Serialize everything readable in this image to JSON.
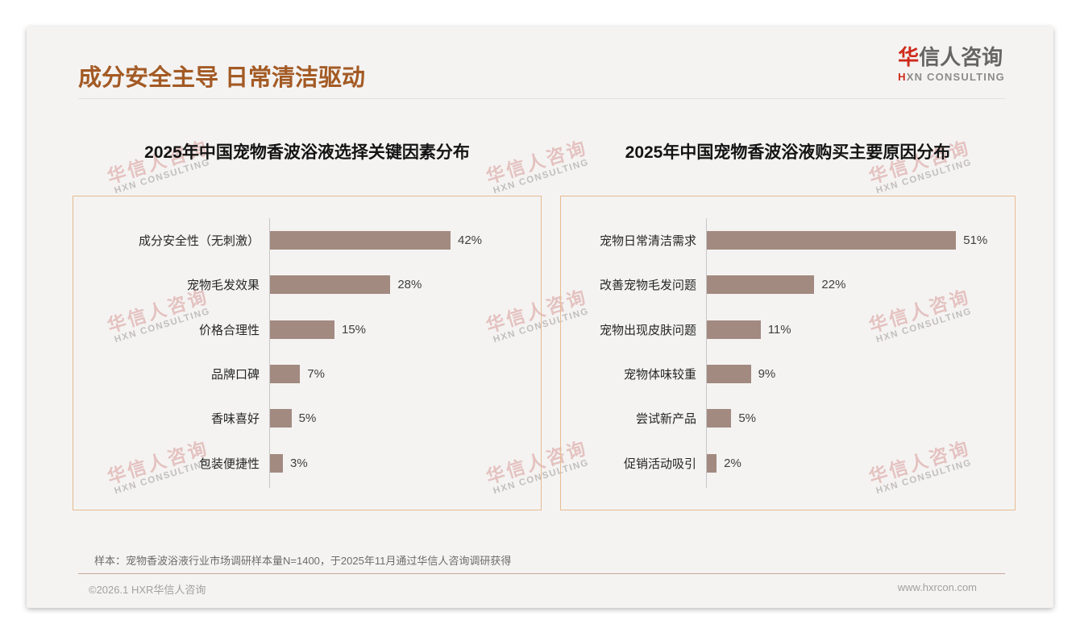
{
  "page": {
    "title": "成分安全主导 日常清洁驱动",
    "logo": {
      "brand_first": "华",
      "brand_rest": "信人咨询",
      "subtitle_first": "H",
      "subtitle_rest": "XN CONSULTING"
    },
    "watermark": {
      "text": "华信人咨询",
      "subtext": "HXN CONSULTING"
    },
    "note": "样本：宠物香波浴液行业市场调研样本量N=1400，于2025年11月通过华信人咨询调研获得",
    "footer_left": "©2026.1 HXR华信人咨询",
    "footer_right": "www.hxrcon.com"
  },
  "colors": {
    "title": "#a35a24",
    "bar": "#a28a81",
    "panel_border": "#e7bb90",
    "axis": "#c6c6c6",
    "logo_red": "#cf2a1b"
  },
  "chart_data": [
    {
      "type": "bar",
      "orientation": "horizontal",
      "title": "2025年中国宠物香波浴液选择关键因素分布",
      "categories": [
        "成分安全性（无刺激）",
        "宠物毛发效果",
        "价格合理性",
        "品牌口碑",
        "香味喜好",
        "包装便捷性"
      ],
      "values": [
        42,
        28,
        15,
        7,
        5,
        3
      ],
      "unit": "%",
      "xlabel": "",
      "ylabel": "",
      "xlim": [
        0,
        63
      ],
      "grid": false,
      "legend": false,
      "bar_color": "#a28a81",
      "value_labels": [
        "42%",
        "28%",
        "15%",
        "7%",
        "5%",
        "3%"
      ]
    },
    {
      "type": "bar",
      "orientation": "horizontal",
      "title": "2025年中国宠物香波浴液购买主要原因分布",
      "categories": [
        "宠物日常清洁需求",
        "改善宠物毛发问题",
        "宠物出现皮肤问题",
        "宠物体味较重",
        "尝试新产品",
        "促销活动吸引"
      ],
      "values": [
        51,
        22,
        11,
        9,
        5,
        2
      ],
      "unit": "%",
      "xlabel": "",
      "ylabel": "",
      "xlim": [
        0,
        63
      ],
      "grid": false,
      "legend": false,
      "bar_color": "#a28a81",
      "value_labels": [
        "51%",
        "22%",
        "11%",
        "9%",
        "5%",
        "2%"
      ]
    }
  ]
}
